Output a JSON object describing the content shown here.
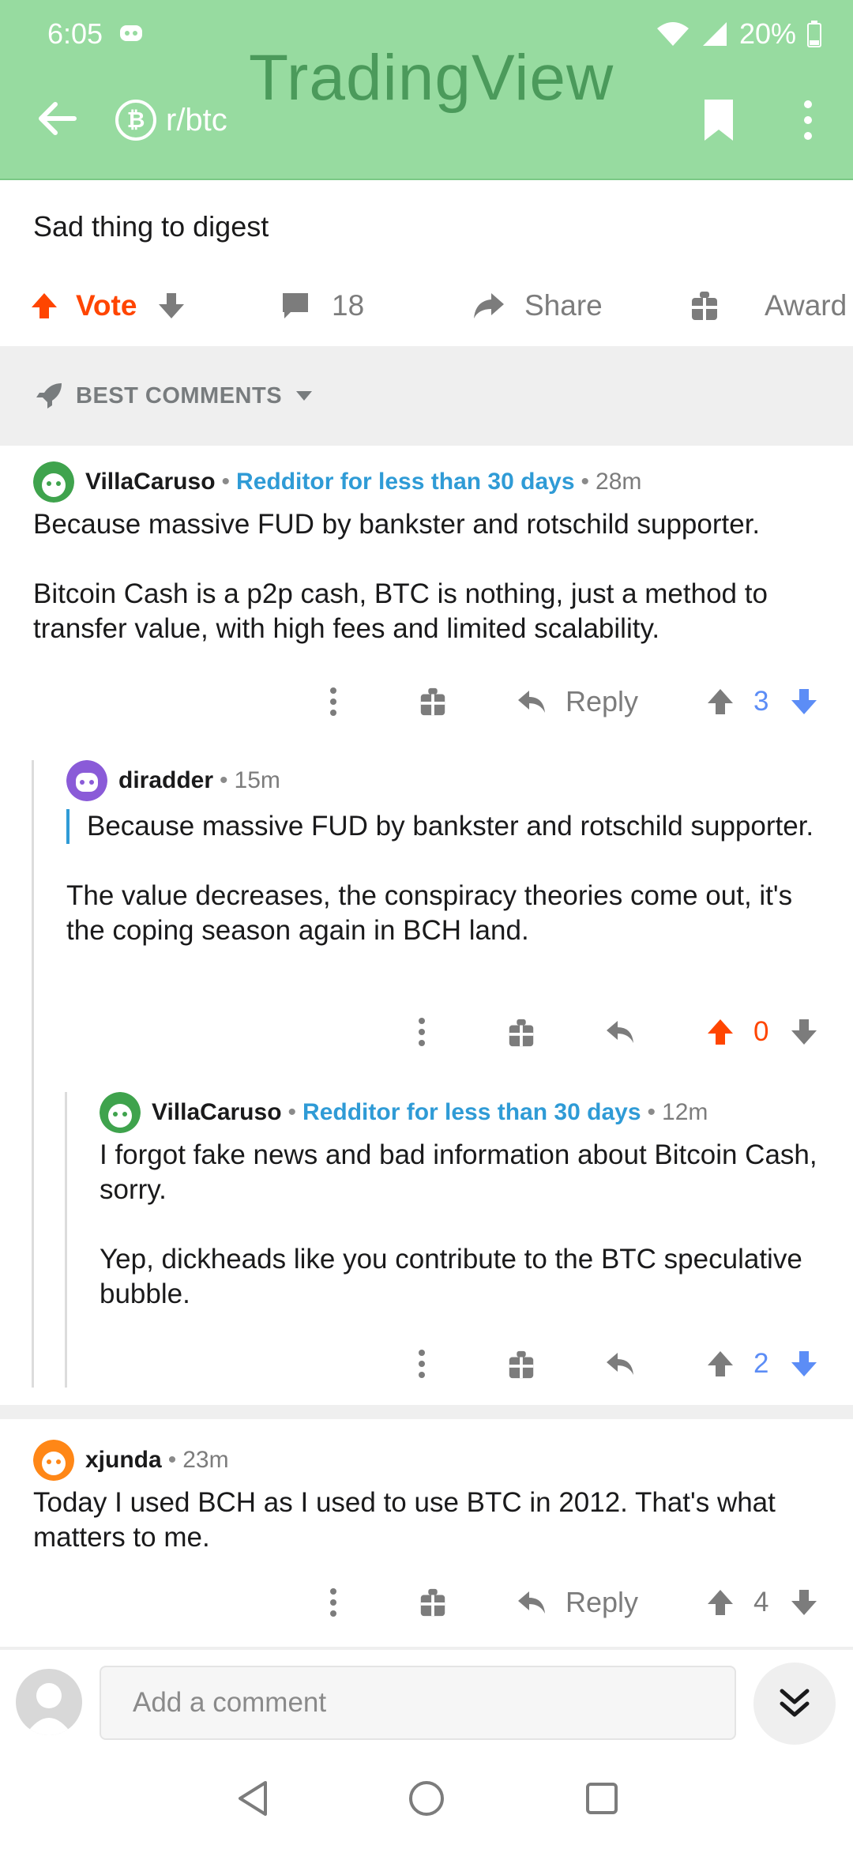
{
  "status_bar": {
    "time": "6:05",
    "battery": "20%"
  },
  "header": {
    "watermark": "TradingView",
    "subreddit": "r/btc"
  },
  "post": {
    "text": "Sad thing to digest",
    "vote_label": "Vote",
    "comment_count": "18",
    "share_label": "Share",
    "award_label": "Award"
  },
  "sort": {
    "label": "BEST COMMENTS"
  },
  "comments": [
    {
      "user": "VillaCaruso",
      "flair": "Redditor for less than 30 days",
      "age": "28m",
      "para1": "Because massive FUD by bankster and rotschild supporter.",
      "para2": "Bitcoin Cash is a p2p cash, BTC is nothing, just a method to transfer value, with high fees and limited scalability.",
      "reply_label": "Reply",
      "score": "3"
    },
    {
      "user": "diradder",
      "age": "15m",
      "quote": "Because massive FUD by bankster and rotschild supporter.",
      "para1": "The value decreases, the conspiracy theories come out, it's the coping season again in BCH land.",
      "score": "0"
    },
    {
      "user": "VillaCaruso",
      "flair": "Redditor for less than 30 days",
      "age": "12m",
      "para1": "I forgot fake news and bad information about Bitcoin Cash, sorry.",
      "para2": "Yep, dickheads like you contribute to the BTC speculative bubble.",
      "score": "2"
    },
    {
      "user": "xjunda",
      "age": "23m",
      "para1": "Today I used BCH as I used to use BTC in 2012. That's what matters to me.",
      "reply_label": "Reply",
      "score": "4"
    }
  ],
  "composer": {
    "placeholder": "Add a comment"
  },
  "colors": {
    "header_bg": "#97dba0",
    "upvote": "#ff4500",
    "downvote": "#5c8df6",
    "flair": "#2f9bd6"
  }
}
